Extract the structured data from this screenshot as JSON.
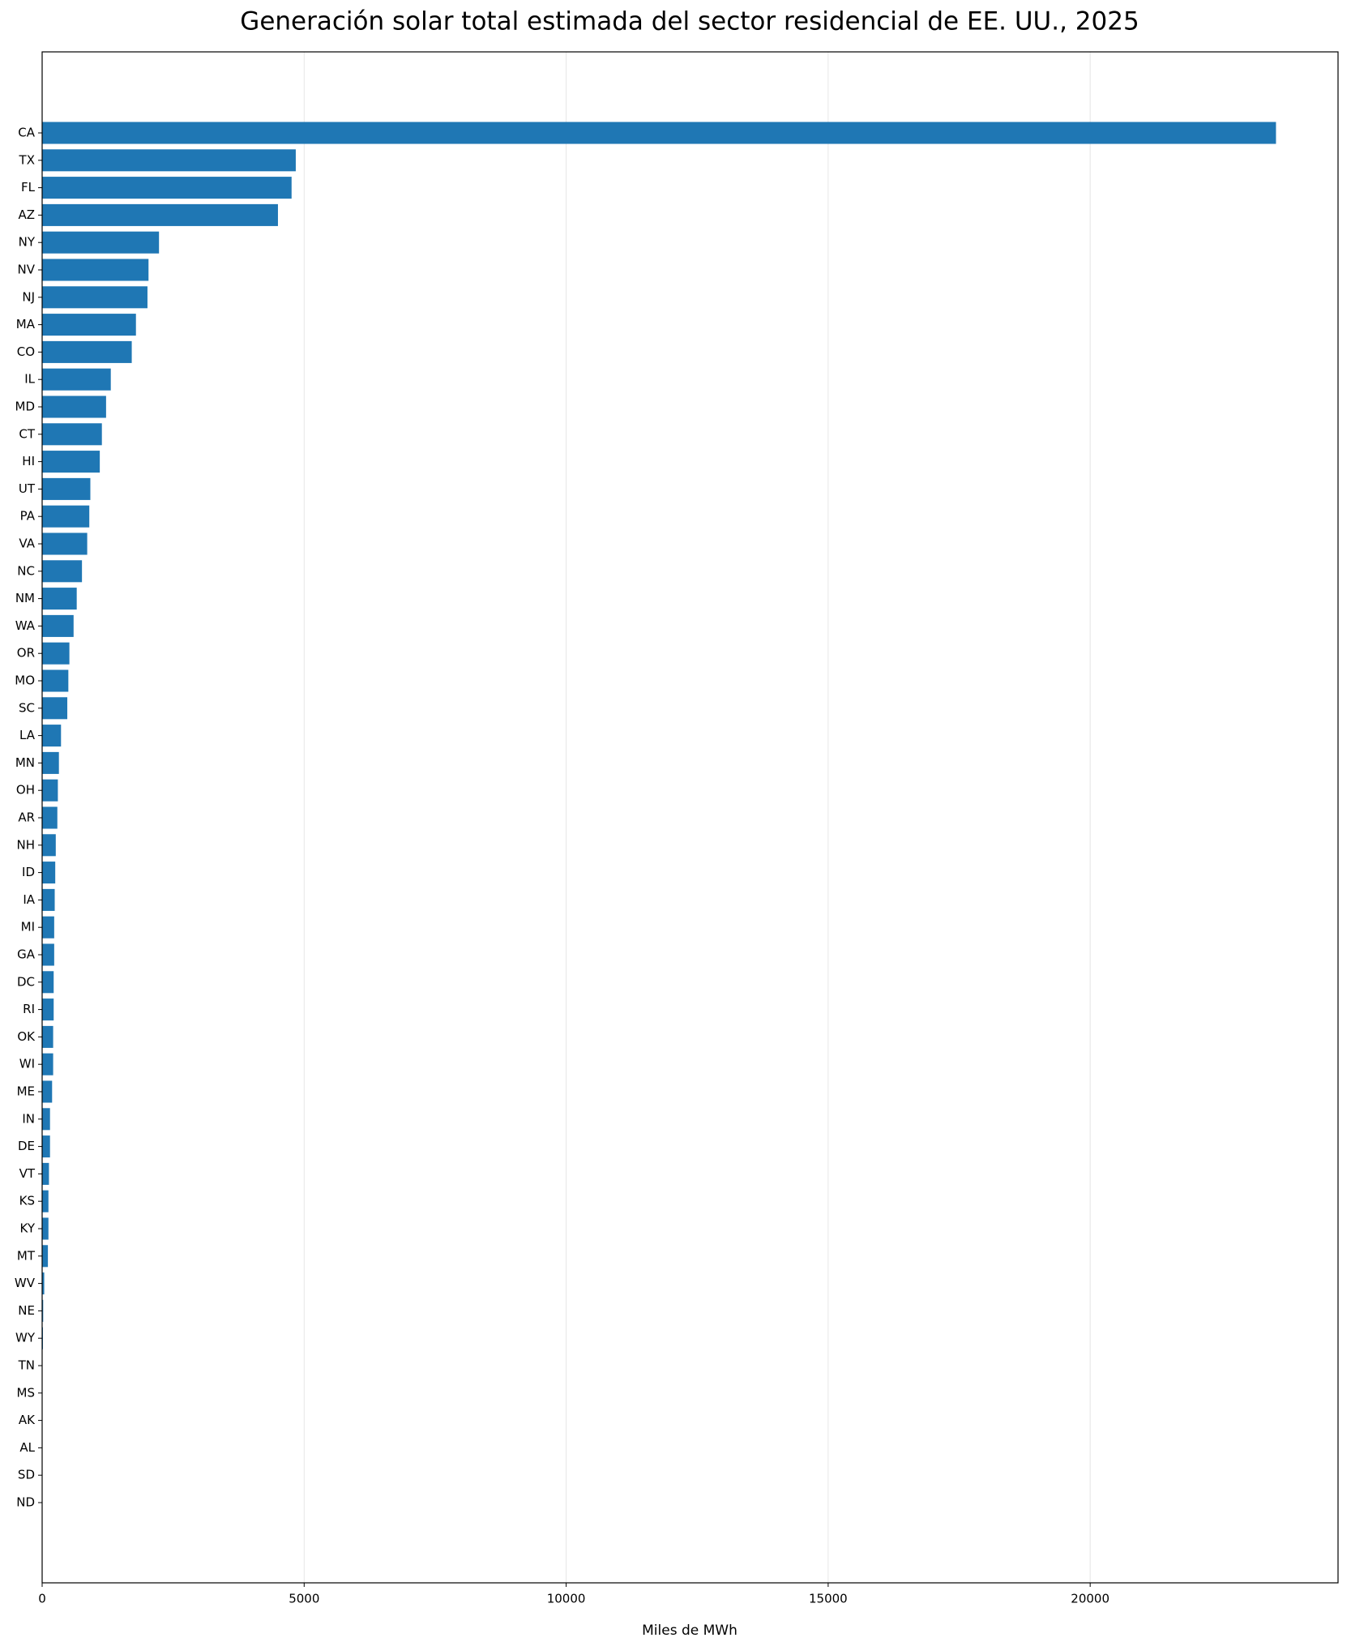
{
  "chart_data": {
    "type": "barh",
    "title": "Generación solar total estimada del sector residencial de EE. UU., 2025",
    "x_label": "Miles de MWh",
    "categories": [
      "CA",
      "TX",
      "FL",
      "AZ",
      "NY",
      "NV",
      "NJ",
      "MA",
      "CO",
      "IL",
      "MD",
      "CT",
      "HI",
      "UT",
      "PA",
      "VA",
      "NC",
      "NM",
      "WA",
      "OR",
      "MO",
      "SC",
      "LA",
      "MN",
      "OH",
      "AR",
      "NH",
      "ID",
      "IA",
      "MI",
      "GA",
      "DC",
      "RI",
      "OK",
      "WI",
      "ME",
      "IN",
      "DE",
      "VT",
      "KS",
      "KY",
      "MT",
      "WV",
      "NE",
      "WY",
      "TN",
      "MS",
      "AK",
      "AL",
      "SD",
      "ND"
    ],
    "values": [
      23546,
      4840,
      4760,
      4500,
      2230,
      2030,
      2010,
      1790,
      1710,
      1310,
      1220,
      1140,
      1100,
      920,
      900,
      860,
      760,
      660,
      600,
      520,
      500,
      480,
      360,
      320,
      300,
      290,
      260,
      250,
      240,
      230,
      230,
      220,
      220,
      210,
      210,
      190,
      150,
      150,
      130,
      120,
      120,
      110,
      40,
      20,
      15,
      5,
      3,
      2,
      1,
      1,
      0.5
    ],
    "color": "#1f77b4",
    "xlim": [
      0,
      24730
    ],
    "xticks": [
      0,
      5000,
      10000,
      15000,
      20000
    ],
    "grid": true
  }
}
